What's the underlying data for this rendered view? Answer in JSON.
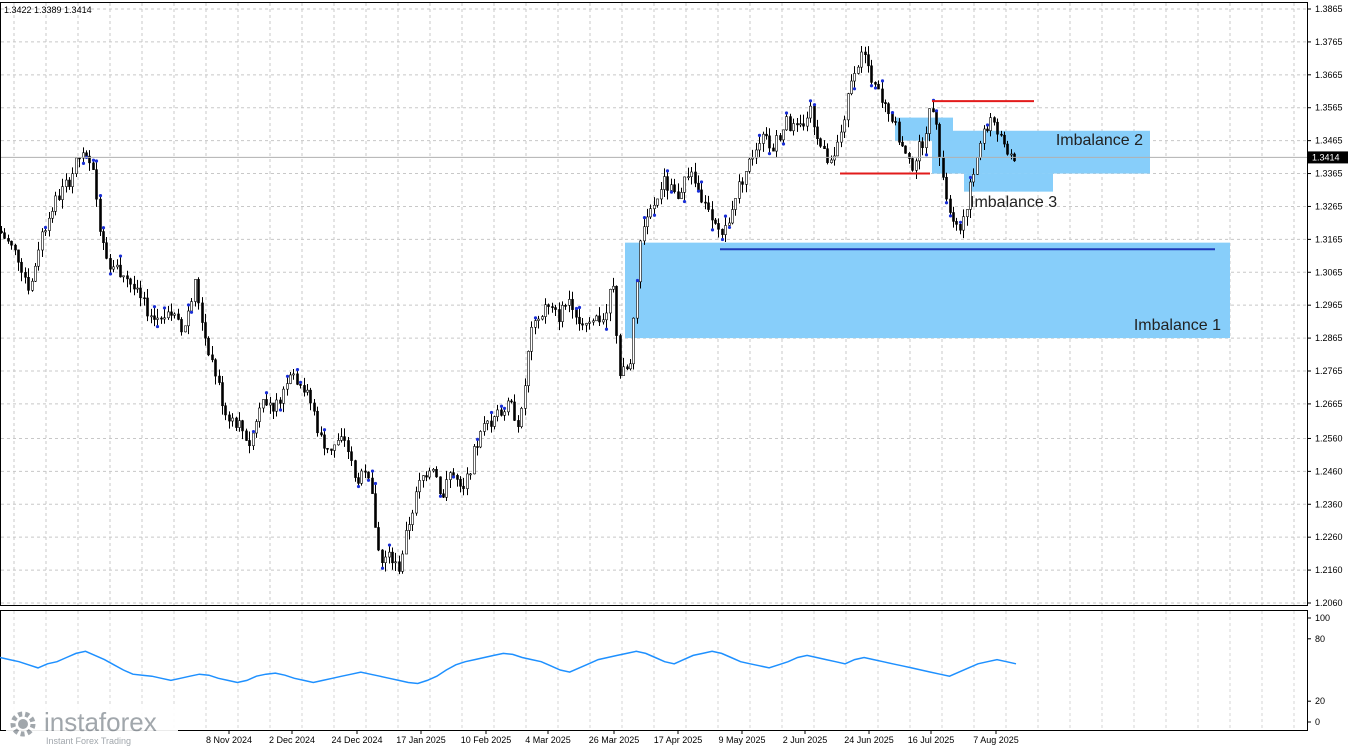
{
  "header": {
    "ohlc": "1.3422 1.3389 1.3414"
  },
  "brand": {
    "name": "instaforex",
    "tagline": "Instant Forex Trading",
    "logo_icon": "gear-icon"
  },
  "chart_data": {
    "type": "candlestick",
    "current_price": "1.3414",
    "y_ticks": [
      "1.3865",
      "1.3765",
      "1.3665",
      "1.3565",
      "1.3465",
      "1.3365",
      "1.3265",
      "1.3165",
      "1.3065",
      "1.2965",
      "1.2865",
      "1.2765",
      "1.2665",
      "1.2560",
      "1.2460",
      "1.2360",
      "1.2260",
      "1.2160",
      "1.2060"
    ],
    "ylim": [
      1.2045,
      1.3885
    ],
    "x_ticks": [
      "8 Nov 2024",
      "2 Dec 2024",
      "24 Dec 2024",
      "17 Jan 2025",
      "10 Feb 2025",
      "4 Mar 2025",
      "26 Mar 2025",
      "17 Apr 2025",
      "9 May 2025",
      "2 Jun 2025",
      "24 Jun 2025",
      "16 Jul 2025",
      "7 Aug 2025"
    ],
    "price_path": [
      [
        0,
        1.319
      ],
      [
        18,
        1.311
      ],
      [
        30,
        1.301
      ],
      [
        40,
        1.317
      ],
      [
        55,
        1.328
      ],
      [
        68,
        1.334
      ],
      [
        80,
        1.342
      ],
      [
        92,
        1.338
      ],
      [
        100,
        1.32
      ],
      [
        110,
        1.309
      ],
      [
        125,
        1.306
      ],
      [
        140,
        1.298
      ],
      [
        155,
        1.292
      ],
      [
        168,
        1.296
      ],
      [
        182,
        1.288
      ],
      [
        195,
        1.303
      ],
      [
        205,
        1.287
      ],
      [
        215,
        1.276
      ],
      [
        225,
        1.264
      ],
      [
        240,
        1.26
      ],
      [
        250,
        1.254
      ],
      [
        262,
        1.27
      ],
      [
        275,
        1.265
      ],
      [
        290,
        1.277
      ],
      [
        300,
        1.273
      ],
      [
        312,
        1.266
      ],
      [
        320,
        1.256
      ],
      [
        330,
        1.253
      ],
      [
        345,
        1.256
      ],
      [
        355,
        1.243
      ],
      [
        365,
        1.247
      ],
      [
        372,
        1.237
      ],
      [
        380,
        1.218
      ],
      [
        390,
        1.22
      ],
      [
        398,
        1.216
      ],
      [
        410,
        1.232
      ],
      [
        420,
        1.243
      ],
      [
        432,
        1.249
      ],
      [
        442,
        1.238
      ],
      [
        452,
        1.247
      ],
      [
        462,
        1.238
      ],
      [
        475,
        1.253
      ],
      [
        485,
        1.26
      ],
      [
        498,
        1.263
      ],
      [
        510,
        1.266
      ],
      [
        520,
        1.26
      ],
      [
        530,
        1.287
      ],
      [
        545,
        1.296
      ],
      [
        558,
        1.293
      ],
      [
        570,
        1.299
      ],
      [
        580,
        1.291
      ],
      [
        592,
        1.293
      ],
      [
        605,
        1.292
      ],
      [
        612,
        1.305
      ],
      [
        620,
        1.275
      ],
      [
        630,
        1.278
      ],
      [
        640,
        1.315
      ],
      [
        652,
        1.326
      ],
      [
        664,
        1.334
      ],
      [
        676,
        1.329
      ],
      [
        688,
        1.337
      ],
      [
        700,
        1.33
      ],
      [
        712,
        1.321
      ],
      [
        724,
        1.318
      ],
      [
        735,
        1.33
      ],
      [
        748,
        1.339
      ],
      [
        760,
        1.348
      ],
      [
        772,
        1.344
      ],
      [
        785,
        1.352
      ],
      [
        798,
        1.349
      ],
      [
        810,
        1.356
      ],
      [
        822,
        1.343
      ],
      [
        832,
        1.338
      ],
      [
        845,
        1.355
      ],
      [
        855,
        1.37
      ],
      [
        865,
        1.372
      ],
      [
        875,
        1.362
      ],
      [
        888,
        1.356
      ],
      [
        900,
        1.346
      ],
      [
        910,
        1.338
      ],
      [
        922,
        1.346
      ],
      [
        932,
        1.358
      ],
      [
        942,
        1.337
      ],
      [
        950,
        1.323
      ],
      [
        958,
        1.318
      ],
      [
        968,
        1.329
      ],
      [
        978,
        1.344
      ],
      [
        990,
        1.353
      ],
      [
        1000,
        1.347
      ],
      [
        1008,
        1.344
      ],
      [
        1016,
        1.3414
      ]
    ],
    "imbalances": [
      {
        "name": "Imbalance 1",
        "from": 1.2865,
        "to": 1.3155
      },
      {
        "name": "Imbalance 2",
        "from": 1.3365,
        "to": 1.3495
      },
      {
        "name": "Imbalance 3",
        "from": 1.331,
        "to": 1.3365
      }
    ],
    "levels": [
      {
        "price": 1.3135,
        "color": "#1e3ab8"
      },
      {
        "price": 1.3585,
        "color": "#e21b1b"
      },
      {
        "price": 1.3365,
        "color": "#e21b1b"
      }
    ],
    "oscillator": {
      "y_ticks": [
        "100",
        "80",
        "20",
        "0"
      ],
      "values": [
        62,
        60,
        58,
        55,
        52,
        56,
        58,
        62,
        66,
        68,
        64,
        60,
        55,
        50,
        46,
        45,
        44,
        42,
        40,
        42,
        44,
        46,
        45,
        42,
        40,
        38,
        40,
        44,
        46,
        47,
        45,
        42,
        40,
        38,
        40,
        42,
        44,
        46,
        48,
        46,
        44,
        42,
        40,
        38,
        37,
        40,
        44,
        50,
        55,
        58,
        60,
        62,
        64,
        66,
        65,
        62,
        60,
        58,
        54,
        50,
        48,
        52,
        56,
        60,
        62,
        64,
        66,
        68,
        66,
        62,
        58,
        56,
        60,
        64,
        66,
        68,
        66,
        62,
        58,
        56,
        54,
        52,
        55,
        58,
        62,
        64,
        62,
        60,
        58,
        56,
        60,
        62,
        60,
        58,
        56,
        54,
        52,
        50,
        48,
        46,
        44,
        48,
        52,
        56,
        58,
        60,
        58,
        56
      ]
    }
  }
}
